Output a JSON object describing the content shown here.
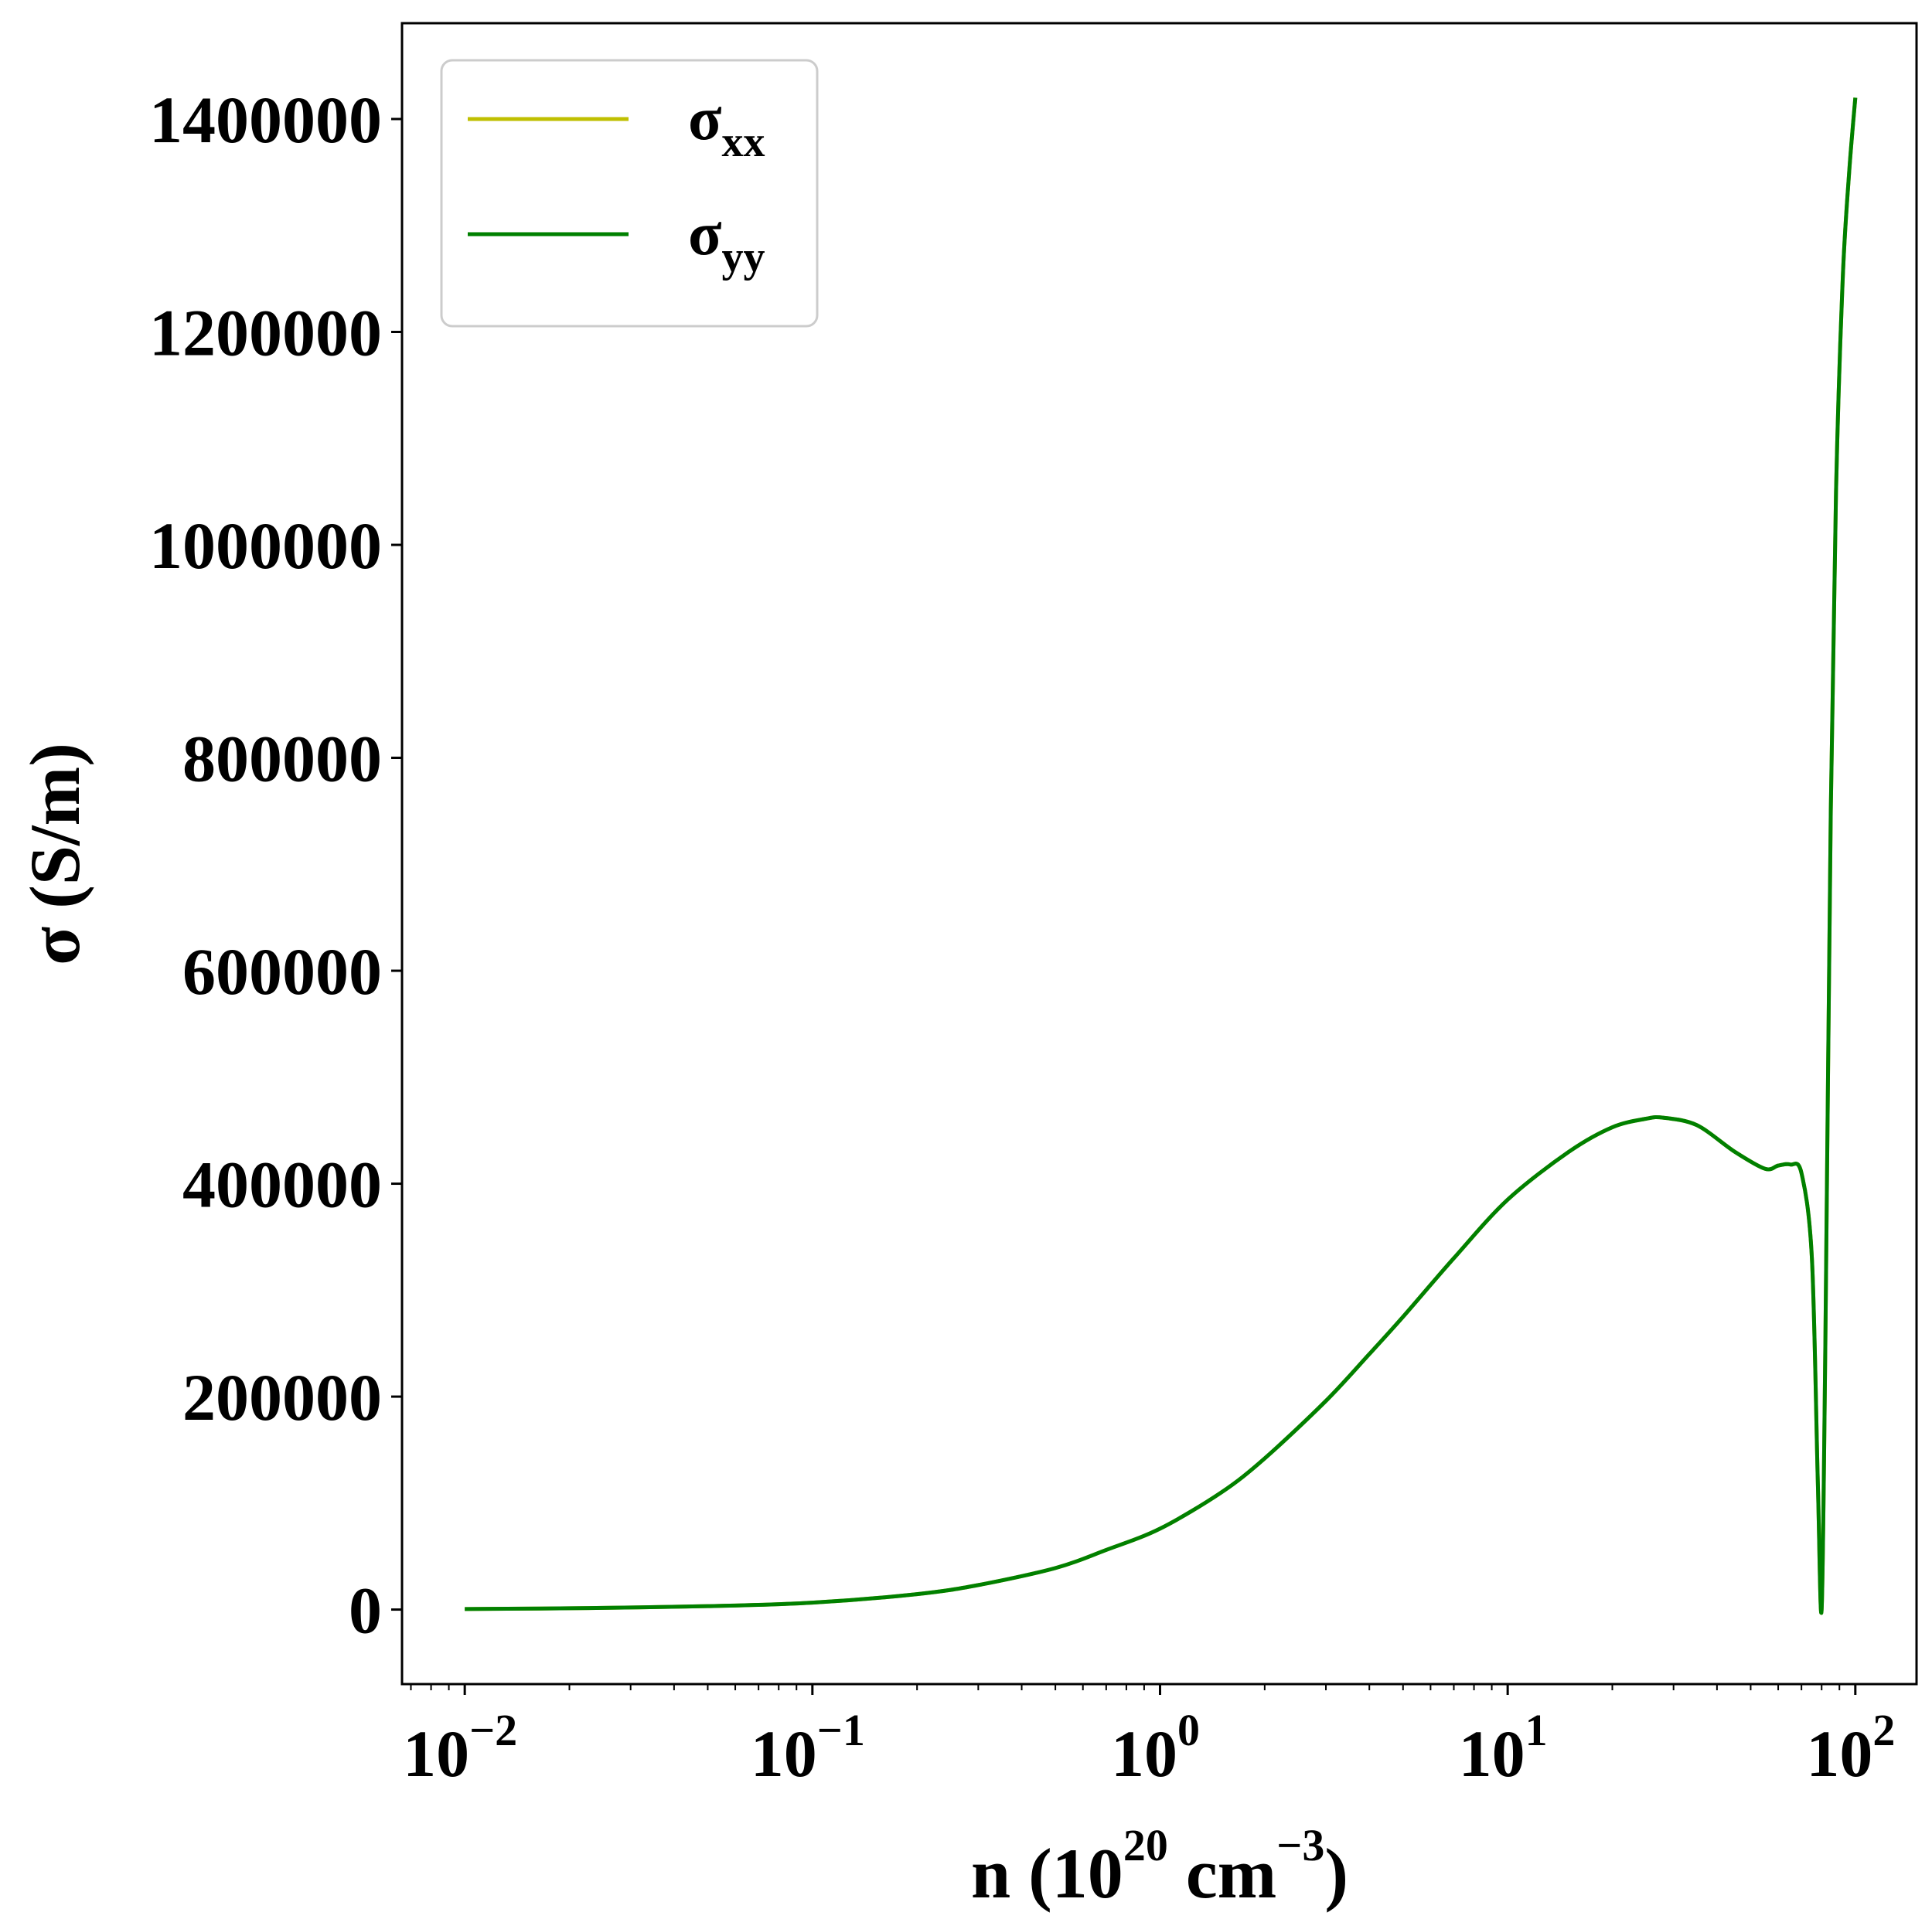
{
  "chart_data": {
    "type": "line",
    "xscale": "log",
    "xlim": [
      0.0066,
      150
    ],
    "ylim": [
      -70000,
      1490000
    ],
    "xlabel": {
      "base": "n (10",
      "exp1": "20",
      "mid": " cm",
      "exp2": "−3",
      "end": ")"
    },
    "ylabel": "σ (S/m)",
    "xticks": [
      {
        "value": 0.01,
        "base": "10",
        "exp": "−2"
      },
      {
        "value": 0.1,
        "base": "10",
        "exp": "−1"
      },
      {
        "value": 1,
        "base": "10",
        "exp": "0"
      },
      {
        "value": 10,
        "base": "10",
        "exp": "1"
      },
      {
        "value": 100,
        "base": "10",
        "exp": "2"
      }
    ],
    "yticks": [
      {
        "value": 0,
        "label": "0"
      },
      {
        "value": 200000,
        "label": "200000"
      },
      {
        "value": 400000,
        "label": "400000"
      },
      {
        "value": 600000,
        "label": "600000"
      },
      {
        "value": 800000,
        "label": "800000"
      },
      {
        "value": 1000000,
        "label": "1000000"
      },
      {
        "value": 1200000,
        "label": "1200000"
      },
      {
        "value": 1400000,
        "label": "1400000"
      }
    ],
    "legend": {
      "placement": "top-left"
    },
    "series": [
      {
        "name": "σxx",
        "name_base": "σ",
        "name_sub": "xx",
        "color": "#bfbf00",
        "x": [
          0.01,
          0.02,
          0.05,
          0.1,
          0.2,
          0.3,
          0.5,
          0.7,
          1,
          1.5,
          2,
          3,
          4,
          5,
          7,
          10,
          15,
          20,
          25,
          28,
          35,
          45,
          55,
          60,
          65,
          70,
          75,
          78,
          80,
          82,
          85,
          88,
          92,
          96,
          100
        ],
        "y": [
          500,
          1200,
          3200,
          6500,
          14500,
          23000,
          39000,
          56000,
          76000,
          110000,
          142000,
          196000,
          240000,
          275000,
          330000,
          385000,
          430000,
          453000,
          461000,
          462000,
          455000,
          430000,
          414000,
          417000,
          418000,
          410000,
          330000,
          120000,
          0,
          250000,
          750000,
          1050000,
          1250000,
          1350000,
          1420000
        ]
      },
      {
        "name": "σyy",
        "name_base": "σ",
        "name_sub": "yy",
        "color": "#008000",
        "x": [
          0.01,
          0.02,
          0.05,
          0.1,
          0.2,
          0.3,
          0.5,
          0.7,
          1,
          1.5,
          2,
          3,
          4,
          5,
          7,
          10,
          15,
          20,
          25,
          28,
          35,
          45,
          55,
          60,
          65,
          70,
          75,
          78,
          80,
          82,
          85,
          88,
          92,
          96,
          100
        ],
        "y": [
          500,
          1200,
          3200,
          6500,
          14500,
          23000,
          39000,
          56000,
          76000,
          110000,
          142000,
          196000,
          240000,
          275000,
          330000,
          385000,
          430000,
          453000,
          461000,
          462000,
          455000,
          430000,
          414000,
          417000,
          418000,
          410000,
          330000,
          120000,
          0,
          250000,
          750000,
          1050000,
          1250000,
          1350000,
          1420000
        ]
      }
    ]
  }
}
